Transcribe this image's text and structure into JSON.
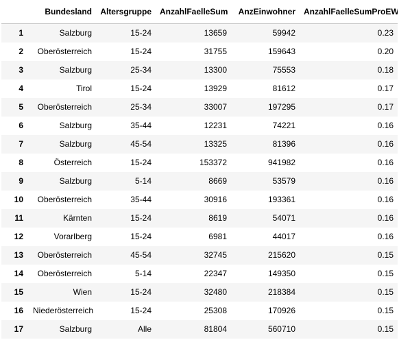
{
  "table": {
    "columns": [
      "",
      "Bundesland",
      "Altersgruppe",
      "AnzahlFaelleSum",
      "AnzEinwohner",
      "AnzahlFaelleSumProEW"
    ],
    "rows": [
      {
        "index": "1",
        "cells": [
          "Salzburg",
          "15-24",
          "13659",
          "59942",
          "0.23"
        ]
      },
      {
        "index": "2",
        "cells": [
          "Oberösterreich",
          "15-24",
          "31755",
          "159643",
          "0.20"
        ]
      },
      {
        "index": "3",
        "cells": [
          "Salzburg",
          "25-34",
          "13300",
          "75553",
          "0.18"
        ]
      },
      {
        "index": "4",
        "cells": [
          "Tirol",
          "15-24",
          "13929",
          "81612",
          "0.17"
        ]
      },
      {
        "index": "5",
        "cells": [
          "Oberösterreich",
          "25-34",
          "33007",
          "197295",
          "0.17"
        ]
      },
      {
        "index": "6",
        "cells": [
          "Salzburg",
          "35-44",
          "12231",
          "74221",
          "0.16"
        ]
      },
      {
        "index": "7",
        "cells": [
          "Salzburg",
          "45-54",
          "13325",
          "81396",
          "0.16"
        ]
      },
      {
        "index": "8",
        "cells": [
          "Österreich",
          "15-24",
          "153372",
          "941982",
          "0.16"
        ]
      },
      {
        "index": "9",
        "cells": [
          "Salzburg",
          "5-14",
          "8669",
          "53579",
          "0.16"
        ]
      },
      {
        "index": "10",
        "cells": [
          "Oberösterreich",
          "35-44",
          "30916",
          "193361",
          "0.16"
        ]
      },
      {
        "index": "11",
        "cells": [
          "Kärnten",
          "15-24",
          "8619",
          "54071",
          "0.16"
        ]
      },
      {
        "index": "12",
        "cells": [
          "Vorarlberg",
          "15-24",
          "6981",
          "44017",
          "0.16"
        ]
      },
      {
        "index": "13",
        "cells": [
          "Oberösterreich",
          "45-54",
          "32745",
          "215620",
          "0.15"
        ]
      },
      {
        "index": "14",
        "cells": [
          "Oberösterreich",
          "5-14",
          "22347",
          "149350",
          "0.15"
        ]
      },
      {
        "index": "15",
        "cells": [
          "Wien",
          "15-24",
          "32480",
          "218384",
          "0.15"
        ]
      },
      {
        "index": "16",
        "cells": [
          "Niederösterreich",
          "15-24",
          "25308",
          "170926",
          "0.15"
        ]
      },
      {
        "index": "17",
        "cells": [
          "Salzburg",
          "Alle",
          "81804",
          "560710",
          "0.15"
        ]
      }
    ]
  }
}
